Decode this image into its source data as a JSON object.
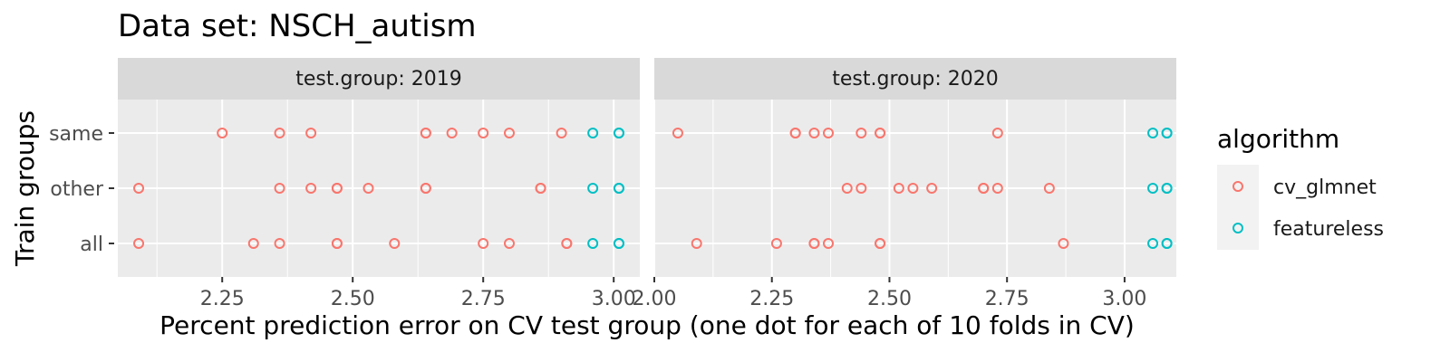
{
  "chart_data": {
    "type": "scatter",
    "title": "Data set: NSCH_autism",
    "xlabel": "Percent prediction error on CV test group (one dot for each of 10 folds in CV)",
    "ylabel": "Train groups",
    "y_categories": [
      "same",
      "other",
      "all"
    ],
    "grid": true,
    "legend_position": "right",
    "legend": {
      "title": "algorithm",
      "entries": [
        {
          "name": "cv_glmnet",
          "color": "#F8766D"
        },
        {
          "name": "featureless",
          "color": "#00BFC4"
        }
      ]
    },
    "panels": [
      {
        "strip_label": "test.group: 2019",
        "xlim": [
          2.05,
          3.05
        ],
        "x_ticks": [
          2.25,
          2.5,
          2.75,
          3.0
        ],
        "x_tick_labels": [
          "2.25",
          "2.50",
          "2.75",
          "3.00"
        ],
        "series": [
          {
            "name": "cv_glmnet",
            "points": {
              "same": [
                2.25,
                2.36,
                2.42,
                2.64,
                2.64,
                2.69,
                2.75,
                2.8,
                2.9
              ],
              "other": [
                2.09,
                2.36,
                2.42,
                2.47,
                2.47,
                2.53,
                2.64,
                2.64,
                2.86,
                2.86
              ],
              "all": [
                2.09,
                2.31,
                2.36,
                2.47,
                2.47,
                2.58,
                2.75,
                2.8,
                2.91,
                2.91
              ]
            }
          },
          {
            "name": "featureless",
            "points": {
              "same": [
                2.96,
                3.01,
                3.01
              ],
              "other": [
                2.96,
                3.01,
                3.01
              ],
              "all": [
                2.96,
                3.01,
                3.01
              ]
            }
          }
        ]
      },
      {
        "strip_label": "test.group: 2020",
        "xlim": [
          2.0,
          3.11
        ],
        "x_ticks": [
          2.0,
          2.25,
          2.5,
          2.75,
          3.0
        ],
        "x_tick_labels": [
          "2.00",
          "2.25",
          "2.50",
          "2.75",
          "3.00"
        ],
        "series": [
          {
            "name": "cv_glmnet",
            "points": {
              "same": [
                2.05,
                2.3,
                2.3,
                2.34,
                2.37,
                2.44,
                2.48,
                2.48,
                2.73
              ],
              "other": [
                2.41,
                2.44,
                2.52,
                2.55,
                2.59,
                2.7,
                2.7,
                2.73,
                2.84
              ],
              "all": [
                2.09,
                2.26,
                2.34,
                2.34,
                2.37,
                2.48,
                2.48,
                2.87
              ]
            }
          },
          {
            "name": "featureless",
            "points": {
              "same": [
                3.06,
                3.09,
                3.09
              ],
              "other": [
                3.06,
                3.09,
                3.09
              ],
              "all": [
                3.06,
                3.09,
                3.09
              ]
            }
          }
        ]
      }
    ]
  }
}
